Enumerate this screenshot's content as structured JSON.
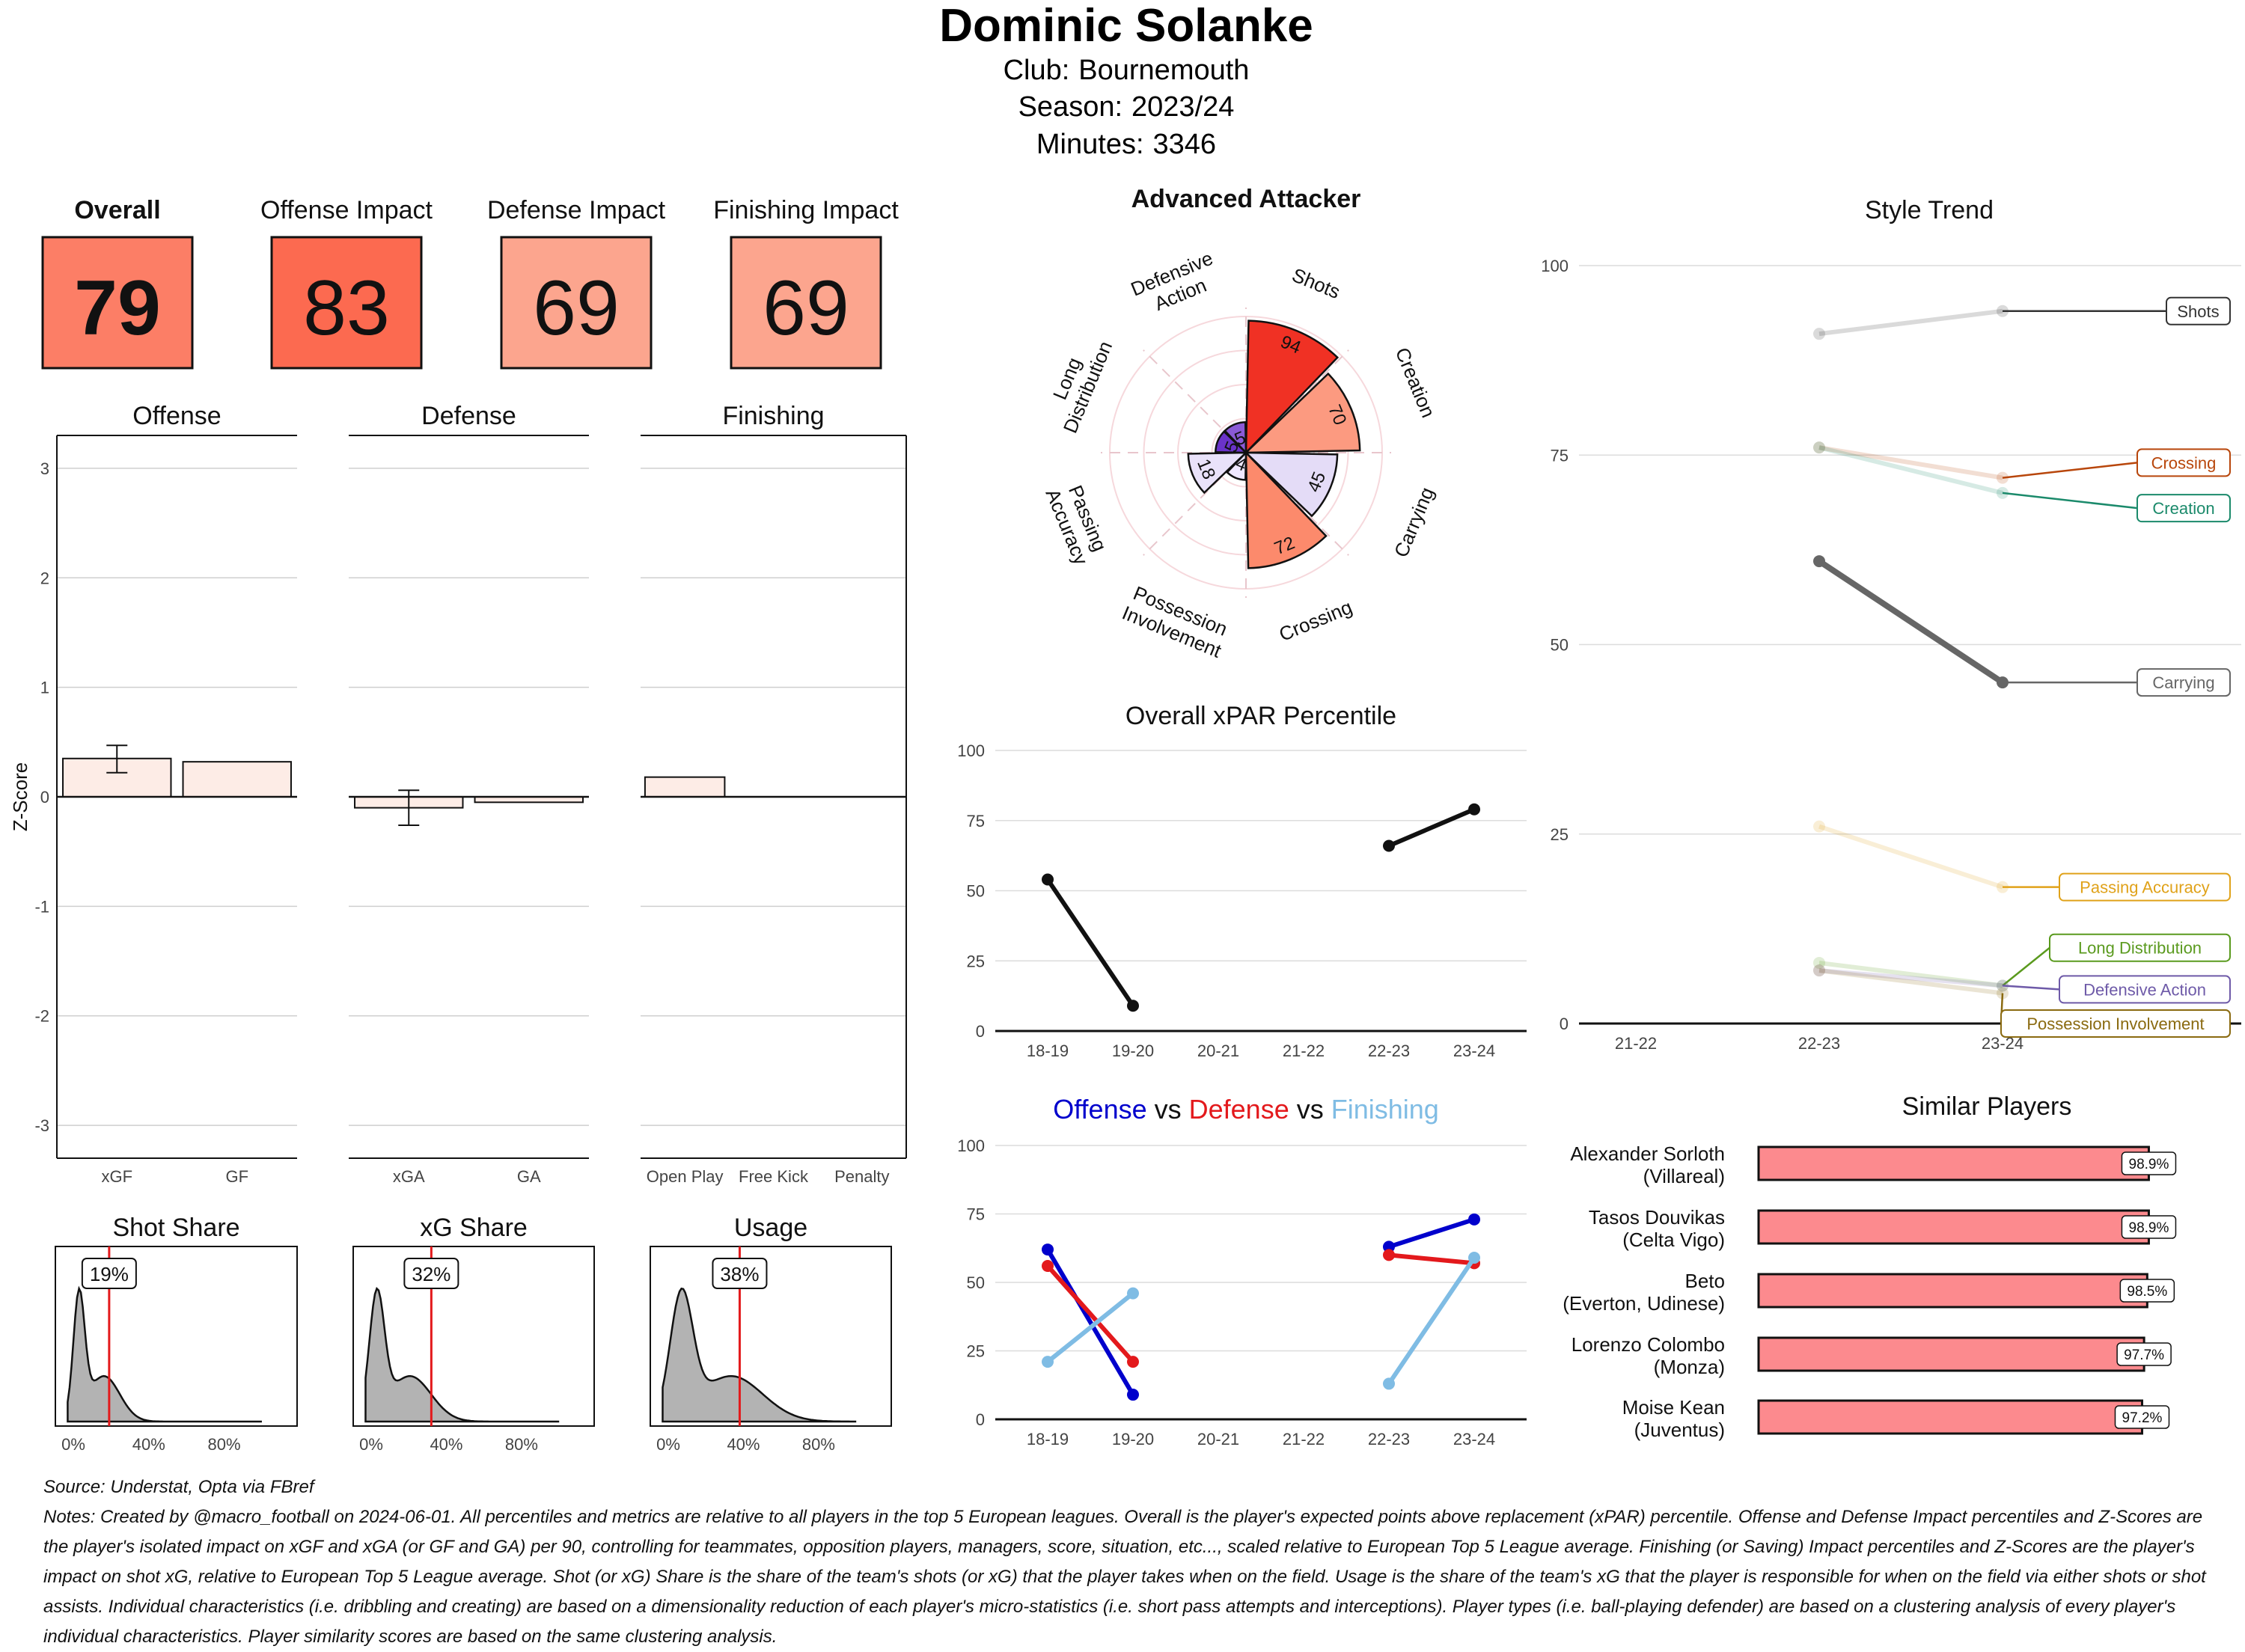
{
  "header": {
    "player": "Dominic Solanke",
    "club_label": "Club:",
    "club": "Bournemouth",
    "season_label": "Season:",
    "season": "2023/24",
    "minutes_label": "Minutes:",
    "minutes": "3346"
  },
  "scores": [
    {
      "label": "Overall",
      "value": "79",
      "color": "#fc7e66"
    },
    {
      "label": "Offense Impact",
      "value": "83",
      "color": "#fc6a50"
    },
    {
      "label": "Defense Impact",
      "value": "69",
      "color": "#fca58e"
    },
    {
      "label": "Finishing Impact",
      "value": "69",
      "color": "#fca58e"
    }
  ],
  "footer": {
    "source": "Source: Understat, Opta via FBref",
    "notes": [
      "Notes: Created by @macro_football on 2024-06-01. All percentiles and metrics are relative to all players in the top 5 European leagues. Overall is the player's expected points above replacement (xPAR) percentile. Offense and Defense Impact percentiles and Z-Scores are",
      "the player's isolated impact on xGF and xGA (or GF and GA) per 90, controlling for teammates, opposition players, managers, score, situation, etc..., scaled relative to European Top 5 League average. Finishing (or Saving) Impact percentiles and Z-Scores are the player's",
      "impact on shot xG, relative to European Top 5 League average. Shot (or xG) Share is the share of the team's shots (or xG) that the player takes when on the field. Usage is the share of the team's xG that the player is responsible for when on the field via either shots or shot",
      "assists. Individual characteristics (i.e. dribbling and creating) are based on a dimensionality reduction of each player's micro-statistics (i.e. short pass attempts and interceptions). Player types (i.e. ball-playing defender) are based on a clustering analysis of every player's",
      "individual characteristics. Player similarity scores are based on the same clustering analysis."
    ]
  },
  "chart_data": [
    {
      "id": "zscores",
      "type": "bar",
      "ylabel": "Z-Score",
      "ylim": [
        -3.3,
        3.3
      ],
      "yticks": [
        -3,
        -2,
        -1,
        0,
        1,
        2,
        3
      ],
      "panels": [
        {
          "title": "Offense",
          "categories": [
            "xGF",
            "GF"
          ],
          "values": [
            0.35,
            0.32
          ],
          "error": [
            [
              0.22,
              0.47
            ],
            null
          ]
        },
        {
          "title": "Defense",
          "categories": [
            "xGA",
            "GA"
          ],
          "values": [
            -0.1,
            -0.05
          ],
          "error": [
            [
              -0.26,
              0.06
            ],
            null
          ]
        },
        {
          "title": "Finishing",
          "categories": [
            "Open Play",
            "Free Kick",
            "Penalty"
          ],
          "values": [
            0.18,
            0.0,
            0.0
          ],
          "error": [
            null,
            null,
            null
          ]
        }
      ],
      "bar_color": "#fdece6"
    },
    {
      "id": "densities",
      "type": "area",
      "xticks": [
        "0%",
        "40%",
        "80%"
      ],
      "panels": [
        {
          "title": "Shot Share",
          "marker": 19,
          "marker_label": "19%",
          "peak": 3,
          "spread": 6
        },
        {
          "title": "xG Share",
          "marker": 32,
          "marker_label": "32%",
          "peak": 3,
          "spread": 8
        },
        {
          "title": "Usage",
          "marker": 38,
          "marker_label": "38%",
          "peak": 7,
          "spread": 12
        }
      ],
      "marker_color": "#e31a1c"
    },
    {
      "id": "radar",
      "type": "bar",
      "title": "Advanced Attacker",
      "categories": [
        "Shots",
        "Creation",
        "Carrying",
        "Crossing",
        "Possession Involvement",
        "Passing Accuracy",
        "Long Distribution",
        "Defensive Action"
      ],
      "category_lines": [
        [
          "Shots"
        ],
        [
          "Creation"
        ],
        [
          "Carrying"
        ],
        [
          "Crossing"
        ],
        [
          "Possession",
          "Involvement"
        ],
        [
          "Passing",
          "Accuracy"
        ],
        [
          "Long",
          "Distribution"
        ],
        [
          "Defensive",
          "Action"
        ]
      ],
      "values": [
        94,
        70,
        45,
        72,
        4,
        18,
        5,
        5
      ],
      "value_labels": [
        "94",
        "70",
        "45",
        "72",
        "4",
        "18",
        "5",
        "5"
      ],
      "colors": [
        "#f03124",
        "#fc9a80",
        "#e4dcf7",
        "#fc8a6c",
        "#efe8ff",
        "#e9e2fa",
        "#6a33c9",
        "#8a5ad6"
      ]
    },
    {
      "id": "xpar",
      "type": "line",
      "title": "Overall xPAR Percentile",
      "categories": [
        "18-19",
        "19-20",
        "20-21",
        "21-22",
        "22-23",
        "23-24"
      ],
      "ylim": [
        0,
        100
      ],
      "yticks": [
        0,
        25,
        50,
        75,
        100
      ],
      "segments": [
        [
          [
            0,
            54
          ],
          [
            1,
            9
          ]
        ],
        [
          [
            4,
            66
          ],
          [
            5,
            79
          ]
        ]
      ]
    },
    {
      "id": "ovd",
      "type": "line",
      "title_parts": [
        {
          "text": "Offense",
          "color": "#0000cc"
        },
        {
          "text": " vs ",
          "color": "#111111"
        },
        {
          "text": "Defense",
          "color": "#e3191c"
        },
        {
          "text": " vs ",
          "color": "#111111"
        },
        {
          "text": "Finishing",
          "color": "#7fbce4"
        }
      ],
      "categories": [
        "18-19",
        "19-20",
        "20-21",
        "21-22",
        "22-23",
        "23-24"
      ],
      "ylim": [
        0,
        100
      ],
      "yticks": [
        0,
        25,
        50,
        75,
        100
      ],
      "series": [
        {
          "name": "Offense",
          "color": "#0000cc",
          "segments": [
            [
              [
                0,
                62
              ],
              [
                1,
                9
              ]
            ],
            [
              [
                4,
                63
              ],
              [
                5,
                73
              ]
            ]
          ]
        },
        {
          "name": "Defense",
          "color": "#e3191c",
          "segments": [
            [
              [
                0,
                56
              ],
              [
                1,
                21
              ]
            ],
            [
              [
                4,
                60
              ],
              [
                5,
                57
              ]
            ]
          ]
        },
        {
          "name": "Finishing",
          "color": "#7fbce4",
          "segments": [
            [
              [
                0,
                21
              ],
              [
                1,
                46
              ]
            ],
            [
              [
                4,
                13
              ],
              [
                5,
                59
              ]
            ]
          ]
        }
      ]
    },
    {
      "id": "style",
      "type": "line",
      "title": "Style Trend",
      "categories": [
        "21-22",
        "22-23",
        "23-24"
      ],
      "ylim": [
        0,
        100
      ],
      "yticks": [
        0,
        25,
        50,
        75,
        100
      ],
      "series": [
        {
          "name": "Shots",
          "color": "#333333",
          "values": [
            null,
            91,
            94
          ],
          "label_y": 94,
          "alpha": 0.18
        },
        {
          "name": "Crossing",
          "color": "#b8460b",
          "values": [
            null,
            76,
            72
          ],
          "label_y": 74,
          "alpha": 0.18
        },
        {
          "name": "Creation",
          "color": "#1b8a6b",
          "values": [
            null,
            76,
            70
          ],
          "label_y": 68,
          "alpha": 0.18
        },
        {
          "name": "Carrying",
          "color": "#666666",
          "values": [
            null,
            61,
            45
          ],
          "label_y": 45,
          "alpha": 1
        },
        {
          "name": "Passing Accuracy",
          "color": "#e0a21a",
          "values": [
            null,
            26,
            18
          ],
          "label_y": 18,
          "alpha": 0.18
        },
        {
          "name": "Long Distribution",
          "color": "#5a9a1e",
          "values": [
            null,
            8,
            5
          ],
          "label_y": 10,
          "alpha": 0.18
        },
        {
          "name": "Defensive Action",
          "color": "#6e5aa8",
          "values": [
            null,
            7,
            5
          ],
          "label_y": 4.5,
          "alpha": 0.18
        },
        {
          "name": "Possession Involvement",
          "color": "#8a6a10",
          "values": [
            null,
            7,
            4
          ],
          "label_y": 0,
          "alpha": 0.18
        }
      ]
    },
    {
      "id": "similar",
      "type": "bar",
      "title": "Similar Players",
      "categories": [
        [
          "Alexander Sorloth",
          "(Villareal)"
        ],
        [
          "Tasos Douvikas",
          "(Celta Vigo)"
        ],
        [
          "Beto",
          "(Everton, Udinese)"
        ],
        [
          "Lorenzo Colombo",
          "(Monza)"
        ],
        [
          "Moise Kean",
          "(Juventus)"
        ]
      ],
      "values": [
        98.9,
        98.9,
        98.5,
        97.7,
        97.2
      ],
      "value_labels": [
        "98.9%",
        "98.9%",
        "98.5%",
        "97.7%",
        "97.2%"
      ],
      "bar_color": "#fc8a8e"
    }
  ]
}
